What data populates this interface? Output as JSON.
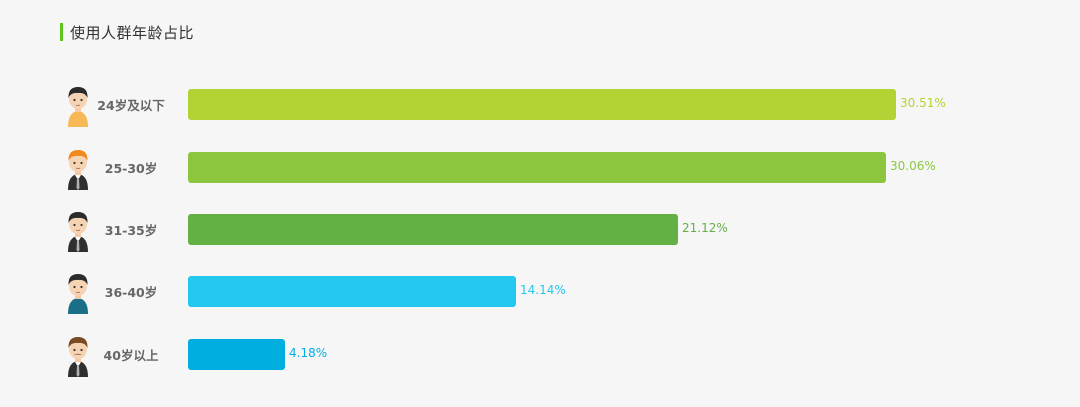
{
  "title": "使用人群年龄占比",
  "chart_data": {
    "type": "bar",
    "orientation": "horizontal",
    "title": "使用人群年龄占比",
    "categories": [
      "24岁及以下",
      "25-30岁",
      "31-35岁",
      "36-40岁",
      "40岁以上"
    ],
    "values": [
      30.51,
      30.06,
      21.12,
      14.14,
      4.18
    ],
    "value_labels": [
      "30.51%",
      "30.06%",
      "21.12%",
      "14.14%",
      "4.18%"
    ],
    "colors": [
      "#b3d334",
      "#8cc63f",
      "#63b045",
      "#22c8f0",
      "#00aee0"
    ],
    "xlim": [
      0,
      30.51
    ],
    "grid": false,
    "legend": "none"
  },
  "avatars": [
    {
      "icon": "young-man-avatar-icon",
      "hair": "#2b2b2b",
      "shirt": "#f7b857",
      "tie": false,
      "mustache": false
    },
    {
      "icon": "ginger-man-avatar-icon",
      "hair": "#f08a1c",
      "shirt": "#2f2f2f",
      "tie": true,
      "mustache": false
    },
    {
      "icon": "suit-man-avatar-icon",
      "hair": "#2b2b2b",
      "shirt": "#2f2f2f",
      "tie": true,
      "mustache": false
    },
    {
      "icon": "teal-shirt-man-avatar-icon",
      "hair": "#2b2b2b",
      "shirt": "#1a6f86",
      "tie": false,
      "mustache": false
    },
    {
      "icon": "mustache-man-avatar-icon",
      "hair": "#7a4a23",
      "shirt": "#2f2f2f",
      "tie": true,
      "mustache": true
    }
  ],
  "colors": {
    "accent": "#5dc61e",
    "background": "#f6f6f6",
    "label": "#666666"
  }
}
